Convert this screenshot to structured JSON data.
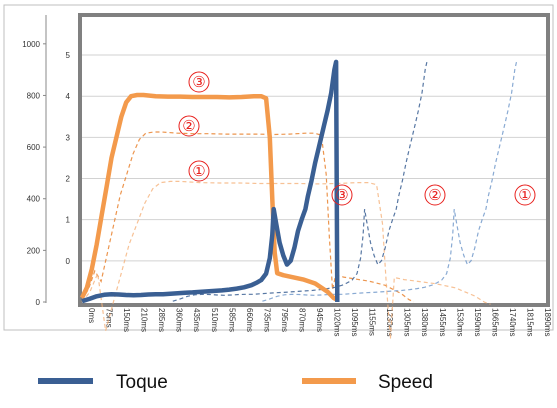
{
  "chart_data": {
    "type": "line",
    "x_unit": "ms",
    "x_ticks": [
      "0ms",
      "75ms",
      "150ms",
      "210ms",
      "285ms",
      "360ms",
      "435ms",
      "510ms",
      "585ms",
      "660ms",
      "735ms",
      "795ms",
      "870ms",
      "945ms",
      "1020ms",
      "1095ms",
      "1155ms",
      "1230ms",
      "1305ms",
      "1380ms",
      "1455ms",
      "1530ms",
      "1590ms",
      "1665ms",
      "1740ms",
      "1815ms",
      "1890ms"
    ],
    "left_axis_ticks": [
      "0",
      "200",
      "400",
      "600",
      "800",
      "1000"
    ],
    "right_axis_ticks": [
      "0",
      "1",
      "2",
      "3",
      "4",
      "5"
    ],
    "left_axis_range": [
      0,
      1100
    ],
    "right_axis_range": [
      -1,
      5.9
    ],
    "grid": true,
    "legend_position": "bottom",
    "series": [
      {
        "name": "Toque",
        "color": "#3a5f93",
        "style": "solid",
        "values": [
          [
            0,
            3
          ],
          [
            30,
            12
          ],
          [
            60,
            22
          ],
          [
            90,
            28
          ],
          [
            120,
            30
          ],
          [
            150,
            29
          ],
          [
            180,
            27
          ],
          [
            210,
            26
          ],
          [
            240,
            27
          ],
          [
            270,
            29
          ],
          [
            300,
            30
          ],
          [
            330,
            30
          ],
          [
            360,
            32
          ],
          [
            390,
            34
          ],
          [
            420,
            36
          ],
          [
            450,
            37
          ],
          [
            480,
            39
          ],
          [
            510,
            41
          ],
          [
            540,
            43
          ],
          [
            570,
            45
          ],
          [
            600,
            48
          ],
          [
            630,
            52
          ],
          [
            660,
            57
          ],
          [
            690,
            65
          ],
          [
            710,
            74
          ],
          [
            730,
            85
          ],
          [
            750,
            110
          ],
          [
            765,
            170
          ],
          [
            775,
            260
          ],
          [
            781,
            360
          ],
          [
            790,
            310
          ],
          [
            805,
            230
          ],
          [
            820,
            180
          ],
          [
            835,
            145
          ],
          [
            850,
            160
          ],
          [
            865,
            210
          ],
          [
            880,
            275
          ],
          [
            895,
            320
          ],
          [
            910,
            360
          ],
          [
            920,
            410
          ],
          [
            935,
            470
          ],
          [
            950,
            540
          ],
          [
            965,
            600
          ],
          [
            985,
            680
          ],
          [
            1000,
            740
          ],
          [
            1015,
            810
          ],
          [
            1028,
            900
          ],
          [
            1035,
            930
          ],
          [
            1040,
            0
          ]
        ]
      },
      {
        "name": "Speed",
        "color": "#f39a4c",
        "style": "solid",
        "values": [
          [
            0,
            -0.9
          ],
          [
            20,
            -0.65
          ],
          [
            40,
            -0.2
          ],
          [
            60,
            0.4
          ],
          [
            80,
            1.1
          ],
          [
            100,
            1.8
          ],
          [
            120,
            2.5
          ],
          [
            140,
            3.0
          ],
          [
            160,
            3.5
          ],
          [
            180,
            3.85
          ],
          [
            200,
            4.0
          ],
          [
            225,
            4.03
          ],
          [
            250,
            4.03
          ],
          [
            300,
            4.0
          ],
          [
            350,
            3.99
          ],
          [
            400,
            3.99
          ],
          [
            450,
            3.98
          ],
          [
            500,
            3.98
          ],
          [
            550,
            3.98
          ],
          [
            600,
            3.97
          ],
          [
            650,
            3.98
          ],
          [
            700,
            4.0
          ],
          [
            730,
            4.0
          ],
          [
            750,
            3.95
          ],
          [
            765,
            3.0
          ],
          [
            775,
            1.5
          ],
          [
            785,
            0.2
          ],
          [
            795,
            -0.3
          ],
          [
            820,
            -0.35
          ],
          [
            860,
            -0.4
          ],
          [
            900,
            -0.45
          ],
          [
            950,
            -0.55
          ],
          [
            1000,
            -0.75
          ],
          [
            1025,
            -0.9
          ],
          [
            1040,
            -0.95
          ]
        ]
      }
    ],
    "annotations": [
      "③",
      "②",
      "①",
      "③",
      "②",
      "①"
    ]
  },
  "legend": {
    "items": [
      {
        "label": "Toque",
        "color": "#3a5f93"
      },
      {
        "label": "Speed",
        "color": "#f39a4c"
      }
    ]
  }
}
